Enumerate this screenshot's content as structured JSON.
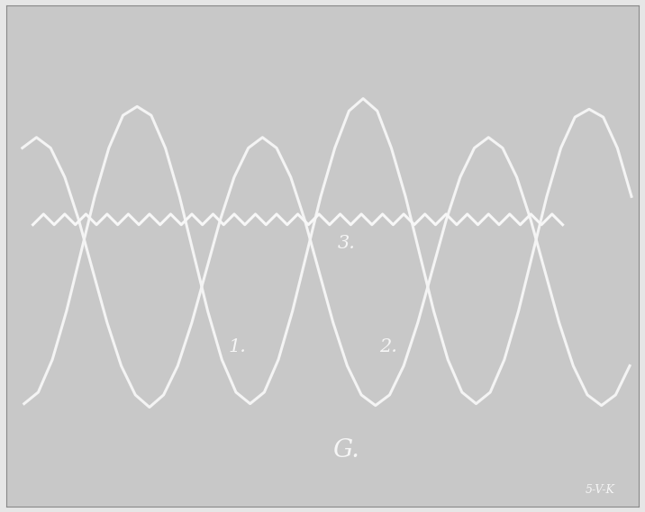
{
  "chart_data": {
    "type": "line",
    "tick_labels": false,
    "grid": false,
    "xlim": [
      0,
      716
    ],
    "ylim": [
      569,
      0
    ],
    "annotations": [
      "1.",
      "2.",
      "3.",
      "G.",
      "5-V-K"
    ],
    "series": [
      {
        "name": "1.",
        "color": "#f4f4f4",
        "line_style": "solid",
        "x": [
          20,
          36,
          52,
          68,
          84,
          100,
          116,
          132,
          148,
          164,
          180,
          196,
          212,
          228,
          244,
          260,
          276,
          292,
          308,
          324,
          340,
          356,
          372,
          388,
          404,
          420,
          436,
          452,
          468,
          484,
          500,
          516,
          532,
          548,
          564,
          580,
          596,
          612,
          628,
          644,
          660,
          676,
          692,
          708
        ],
        "values": [
          452,
          439,
          402,
          347,
          282,
          217,
          162,
          125,
          115,
          125,
          162,
          217,
          282,
          347,
          402,
          439,
          452,
          439,
          402,
          347,
          282,
          217,
          162,
          120,
          106,
          120,
          162,
          217,
          282,
          347,
          402,
          439,
          452,
          439,
          402,
          347,
          282,
          217,
          162,
          127,
          118,
          127,
          162,
          217
        ]
      },
      {
        "name": "2.",
        "color": "#f4f4f4",
        "line_style": "solid",
        "x": [
          18,
          34,
          50,
          66,
          82,
          98,
          114,
          130,
          146,
          162,
          178,
          194,
          210,
          226,
          242,
          258,
          274,
          290,
          306,
          322,
          338,
          354,
          370,
          386,
          402,
          418,
          434,
          450,
          466,
          482,
          498,
          514,
          530,
          546,
          562,
          578,
          594,
          610,
          626,
          642,
          658,
          674,
          690,
          706
        ],
        "values": [
          162,
          150,
          162,
          195,
          244,
          302,
          360,
          409,
          442,
          456,
          442,
          409,
          360,
          302,
          244,
          195,
          162,
          150,
          162,
          195,
          244,
          302,
          360,
          409,
          442,
          454,
          442,
          409,
          360,
          302,
          244,
          195,
          162,
          150,
          162,
          195,
          244,
          302,
          360,
          409,
          442,
          454,
          442,
          409
        ]
      },
      {
        "name": "3.",
        "color": "#f7f7f7",
        "line_style": "solid",
        "x": [
          30,
          42,
          54,
          66,
          78,
          90,
          102,
          114,
          126,
          138,
          150,
          162,
          174,
          186,
          198,
          210,
          222,
          234,
          246,
          258,
          270,
          282,
          294,
          306,
          318,
          330,
          342,
          354,
          366,
          378,
          390,
          402,
          414,
          426,
          438,
          450,
          462,
          474,
          486,
          498,
          510,
          522,
          534,
          546,
          558,
          570,
          582,
          594,
          606,
          618,
          630
        ],
        "values": [
          249,
          237,
          249,
          237,
          249,
          237,
          249,
          237,
          249,
          237,
          249,
          237,
          249,
          237,
          249,
          237,
          249,
          237,
          249,
          237,
          249,
          237,
          249,
          237,
          249,
          237,
          249,
          237,
          249,
          237,
          249,
          237,
          249,
          237,
          249,
          237,
          249,
          237,
          249,
          237,
          249,
          237,
          249,
          237,
          249,
          237,
          249,
          237,
          249,
          237,
          249
        ]
      }
    ]
  }
}
